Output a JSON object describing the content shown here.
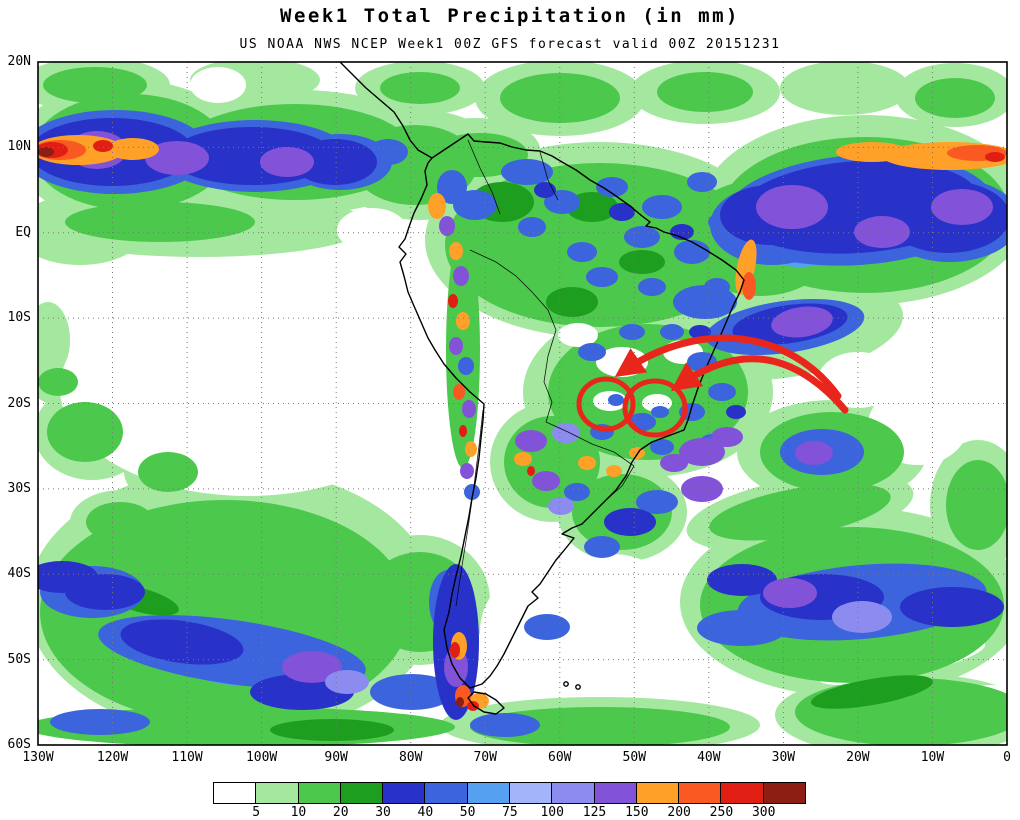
{
  "chart_data": {
    "type": "heatmap",
    "title": "Week1 Total Precipitation (in mm)",
    "subtitle": "US NOAA NWS NCEP Week1 00Z GFS forecast valid 00Z 20151231",
    "x_axis": {
      "tick_labels": [
        "130W",
        "120W",
        "110W",
        "100W",
        "90W",
        "80W",
        "70W",
        "60W",
        "50W",
        "40W",
        "30W",
        "20W",
        "10W",
        "0"
      ]
    },
    "y_axis": {
      "tick_labels": [
        "20N",
        "10N",
        "EQ",
        "10S",
        "20S",
        "30S",
        "40S",
        "50S",
        "60S"
      ]
    },
    "geo_extent": {
      "lon": [
        "130W",
        "0"
      ],
      "lat": [
        "20N",
        "60S"
      ]
    },
    "grid": "dotted, every 10 degrees",
    "colorbar": {
      "labels": [
        "5",
        "10",
        "20",
        "30",
        "40",
        "50",
        "75",
        "100",
        "125",
        "150",
        "200",
        "250",
        "300"
      ],
      "colors": [
        "#ffffff",
        "#a4e8a0",
        "#4cc84c",
        "#1e9e1e",
        "#2832c8",
        "#3c64dc",
        "#55a0f0",
        "#a4b4fa",
        "#8c8cf0",
        "#8252d8",
        "#ffa028",
        "#fa5a22",
        "#e11e14",
        "#8c1e14"
      ]
    },
    "annotation": {
      "color": "#e8261c",
      "shapes": [
        "circle",
        "circle",
        "curved-arrow",
        "curved-arrow"
      ],
      "description": "Two red hand-drawn circles over south-central South America with two curved arrows pointing to them from the east"
    }
  }
}
